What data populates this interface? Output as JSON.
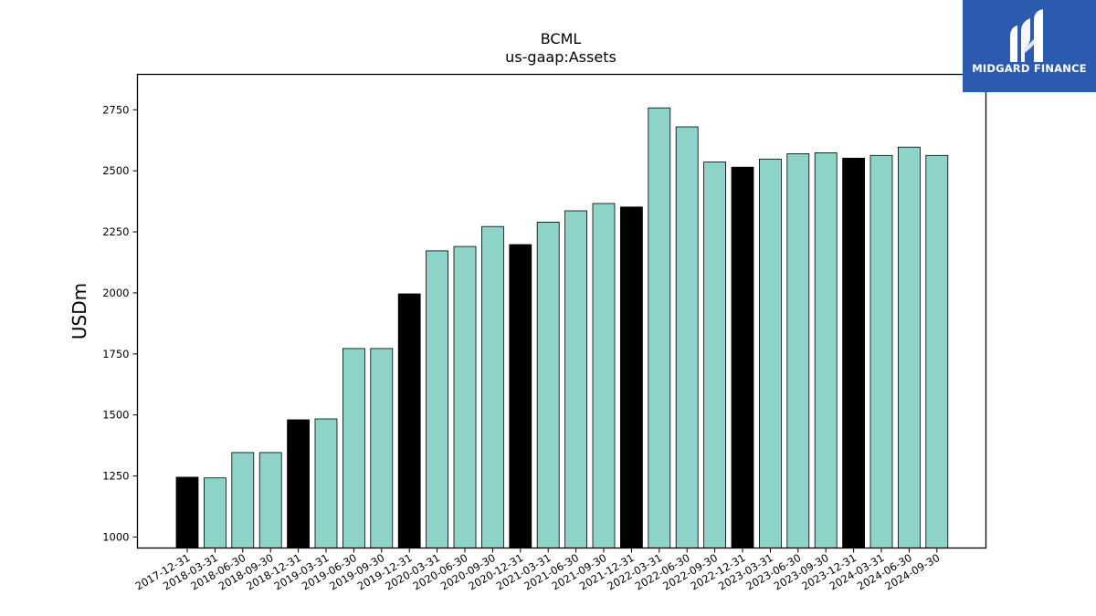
{
  "chart_data": {
    "type": "bar",
    "title": "BCML",
    "subtitle": "us-gaap:Assets",
    "ylabel": "USDm",
    "xlabel": "",
    "ylim": [
      955,
      2895
    ],
    "yticks": [
      1000,
      1250,
      1500,
      1750,
      2000,
      2250,
      2500,
      2750
    ],
    "grid": false,
    "categories": [
      "2017-12-31",
      "2018-03-31",
      "2018-06-30",
      "2018-09-30",
      "2018-12-31",
      "2019-03-31",
      "2019-06-30",
      "2019-09-30",
      "2019-12-31",
      "2020-03-31",
      "2020-06-30",
      "2020-09-30",
      "2020-12-31",
      "2021-03-31",
      "2021-06-30",
      "2021-09-30",
      "2021-12-31",
      "2022-03-31",
      "2022-06-30",
      "2022-09-30",
      "2022-12-31",
      "2023-03-31",
      "2023-06-30",
      "2023-09-30",
      "2023-12-31",
      "2024-03-31",
      "2024-06-30",
      "2024-09-30"
    ],
    "values": [
      1245,
      1242,
      1346,
      1346,
      1480,
      1484,
      1772,
      1772,
      1996,
      2172,
      2190,
      2272,
      2198,
      2290,
      2336,
      2366,
      2352,
      2758,
      2680,
      2536,
      2515,
      2548,
      2570,
      2574,
      2552,
      2563,
      2597,
      2563
    ],
    "year_end_color": "#000000",
    "quarter_color": "#8dd3c7",
    "edge_color": "#000000"
  },
  "logo": {
    "text": "MIDGARD FINANCE",
    "icon": "midgard-logo-icon",
    "background": "#2c5aae"
  }
}
